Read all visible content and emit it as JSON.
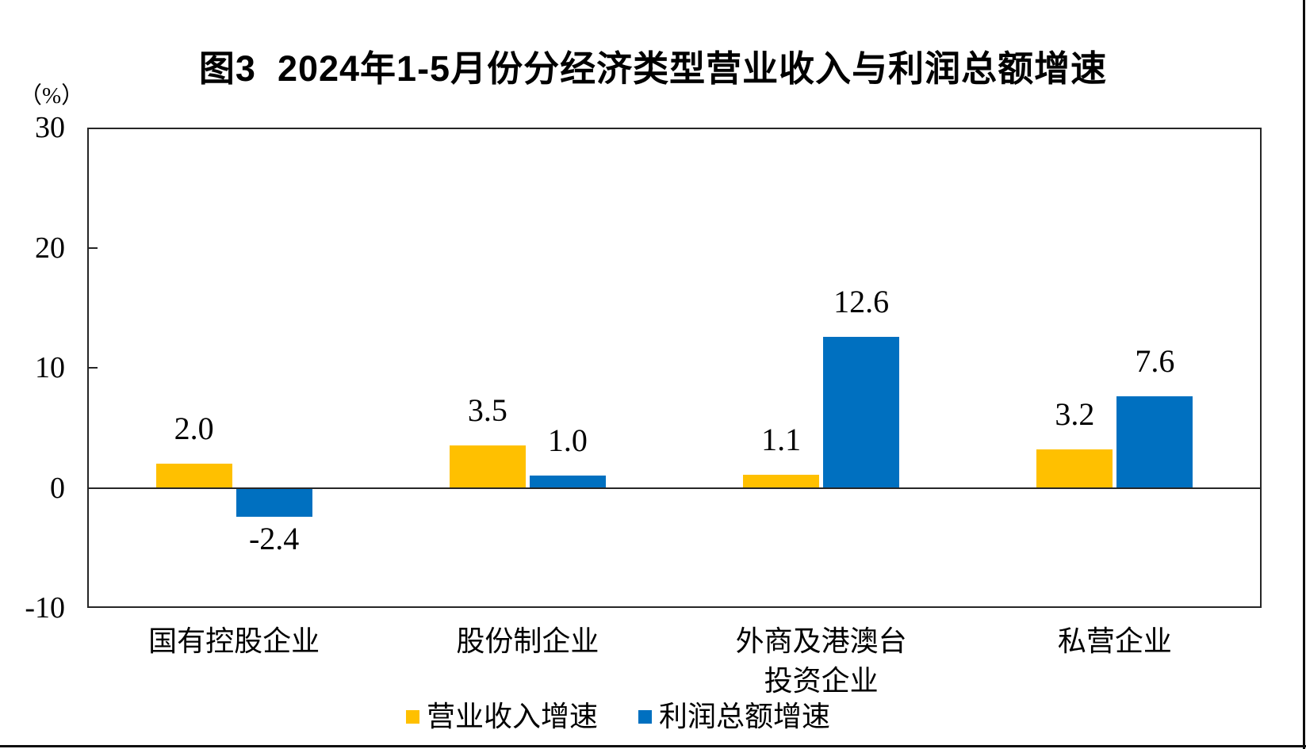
{
  "title": "图3  2024年1-5月份分经济类型营业收入与利润总额增速",
  "y_axis": {
    "unit_label": "（%）",
    "ticks": [
      30,
      20,
      10,
      0,
      -10
    ]
  },
  "chart_data": {
    "type": "bar",
    "title": "图3  2024年1-5月份分经济类型营业收入与利润总额增速",
    "ylabel": "（%）",
    "ylim": [
      -10,
      30
    ],
    "grid": false,
    "legend_position": "bottom",
    "categories": [
      "国有控股企业",
      "股份制企业",
      "外商及港澳台\n投资企业",
      "私营企业"
    ],
    "series": [
      {
        "name": "营业收入增速",
        "key": "revenue",
        "color": "#FFC000",
        "values": [
          2.0,
          3.5,
          1.1,
          3.2
        ],
        "labels": [
          "2.0",
          "3.5",
          "1.1",
          "3.2"
        ]
      },
      {
        "name": "利润总额增速",
        "key": "profit",
        "color": "#0070C0",
        "values": [
          -2.4,
          1.0,
          12.6,
          7.6
        ],
        "labels": [
          "-2.4",
          "1.0",
          "12.6",
          "7.6"
        ]
      }
    ]
  },
  "colors": {
    "revenue_series": "#FFC000",
    "profit_series": "#0070C0",
    "axis_line": "#262626"
  }
}
